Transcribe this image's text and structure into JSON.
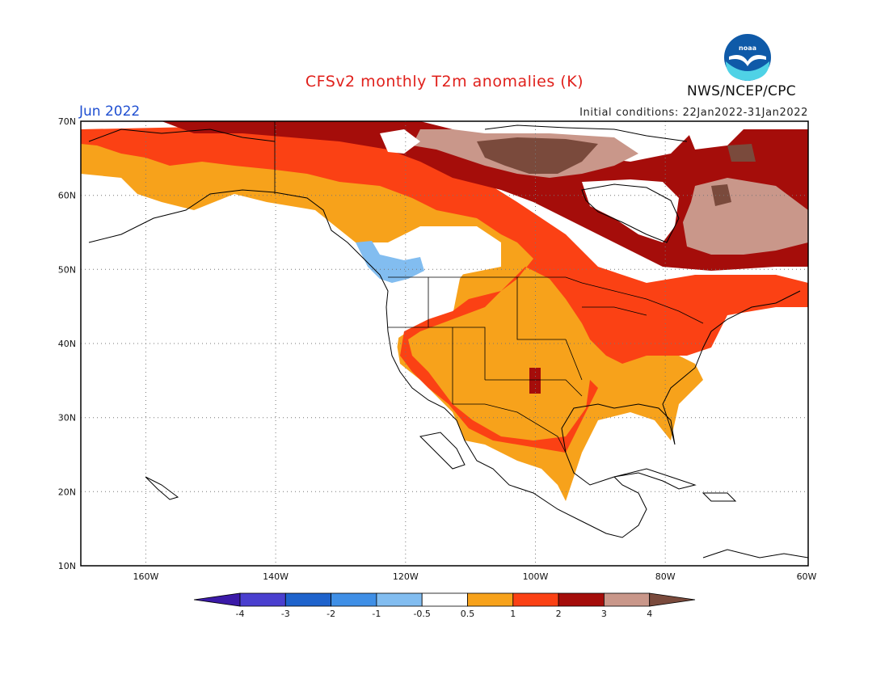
{
  "header": {
    "title": "CFSv2 monthly T2m anomalies (K)",
    "month": "Jun 2022",
    "initial_conditions": "Initial conditions: 22Jan2022-31Jan2022",
    "org": "NWS/NCEP/CPC",
    "logo_text": "noaa"
  },
  "map": {
    "lon_range": [
      -172,
      -60
    ],
    "lat_range": [
      10,
      70
    ],
    "lat_ticks": [
      "70N",
      "60N",
      "50N",
      "40N",
      "30N",
      "20N",
      "10N"
    ],
    "lon_ticks": [
      "160W",
      "140W",
      "120W",
      "100W",
      "80W",
      "60W"
    ],
    "gridlines": "dotted"
  },
  "legend": {
    "labels": [
      "-4",
      "-3",
      "-2",
      "-1",
      "-0.5",
      "0.5",
      "1",
      "2",
      "3",
      "4"
    ],
    "colors": [
      "#3b1aa8",
      "#4a3fcf",
      "#1e63cc",
      "#3f8fe6",
      "#82bdf0",
      "#ffffff",
      "#f7a21b",
      "#fb4114",
      "#a50d0a",
      "#c9978a",
      "#7a4a3c"
    ],
    "color_meaning": [
      "< -4",
      "-4 to -3",
      "-3 to -2",
      "-2 to -1",
      "-1 to -0.5",
      "-0.5 to 0.5",
      "0.5 to 1",
      "1 to 2",
      "2 to 3",
      "3 to 4",
      "> 4"
    ]
  },
  "colors": {
    "title": "#e0201b",
    "month": "#1f4fd1",
    "noaa_blue": "#0f5aa8",
    "noaa_cyan": "#4fd2e6"
  }
}
